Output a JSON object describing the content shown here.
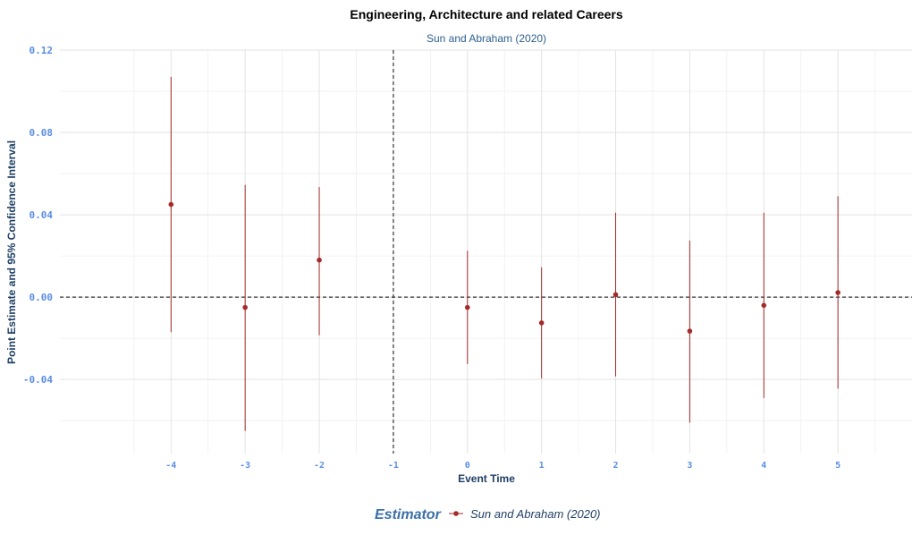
{
  "chart_data": {
    "type": "scatter",
    "title": "Engineering, Architecture and related Careers",
    "subtitle": "Sun and Abraham (2020)",
    "xlabel": "Event Time",
    "ylabel": "Point Estimate and 95% Confidence Interval",
    "xlim": [
      -5.5,
      6.0
    ],
    "ylim": [
      -0.076,
      0.12
    ],
    "xticks": [
      "-4",
      "-3",
      "-2",
      "-1",
      "0",
      "1",
      "2",
      "3",
      "4",
      "5"
    ],
    "xtick_values": [
      -4,
      -3,
      -2,
      -1,
      0,
      1,
      2,
      3,
      4,
      5
    ],
    "yticks": [
      "-0.04",
      "0.00",
      "0.04",
      "0.08",
      "0.12"
    ],
    "ytick_values": [
      -0.04,
      0.0,
      0.04,
      0.08,
      0.12
    ],
    "reference_lines": {
      "vertical_x": -1,
      "horizontal_y": 0
    },
    "grid": true,
    "legend": {
      "title": "Estimator",
      "position": "bottom",
      "entries": [
        "Sun and Abraham (2020)"
      ]
    },
    "series": [
      {
        "name": "Sun and Abraham (2020)",
        "color": "#a52a2a",
        "x": [
          -4,
          -3,
          -2,
          0,
          1,
          2,
          3,
          4,
          5
        ],
        "estimate": [
          0.045,
          -0.005,
          0.018,
          -0.005,
          -0.0125,
          0.0012,
          -0.0165,
          -0.004,
          0.0022
        ],
        "ci_low": [
          -0.017,
          -0.065,
          -0.0185,
          -0.0325,
          -0.0395,
          -0.0385,
          -0.061,
          -0.049,
          -0.0445
        ],
        "ci_high": [
          0.107,
          0.0545,
          0.0535,
          0.0225,
          0.0145,
          0.041,
          0.0275,
          0.041,
          0.049
        ]
      }
    ]
  }
}
